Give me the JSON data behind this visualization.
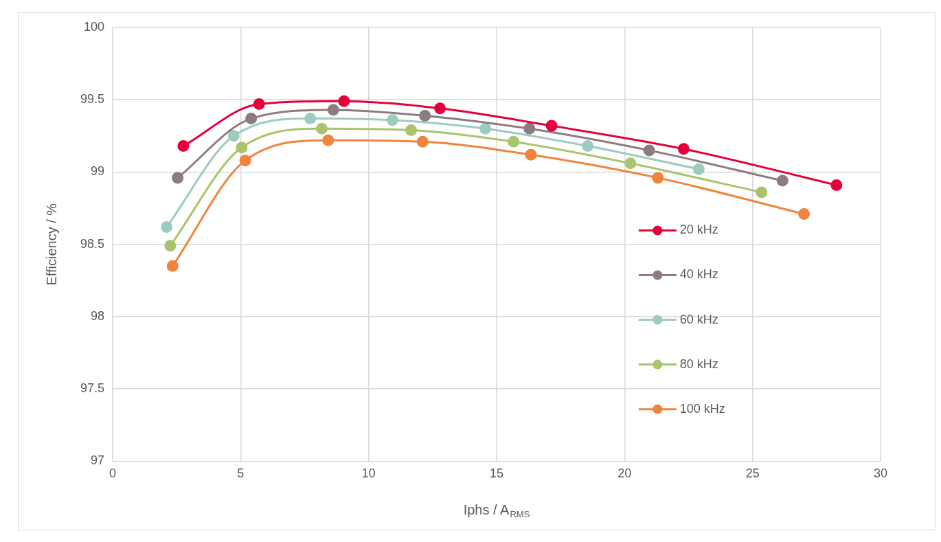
{
  "chart_data": {
    "type": "line",
    "xlabel": "Iphs / A$_{RMS}$",
    "ylabel": "Efficiency / %",
    "xlim": [
      0,
      30
    ],
    "xticks": [
      0,
      5,
      10,
      15,
      20,
      25,
      30
    ],
    "ylim": [
      97,
      100
    ],
    "yticks": [
      97,
      97.5,
      98,
      98.5,
      99,
      99.5,
      100
    ],
    "grid": true,
    "legend": "right",
    "marker": "circle",
    "line_style": "solid",
    "series": [
      {
        "name": "20 kHz",
        "color": "#e4003b",
        "x": [
          2.76,
          5.72,
          9.04,
          12.79,
          17.15,
          22.31,
          28.28
        ],
        "values": [
          99.18,
          99.47,
          99.49,
          99.44,
          99.32,
          99.16,
          98.91
        ]
      },
      {
        "name": "40 kHz",
        "color": "#8c7b80",
        "x": [
          2.54,
          5.41,
          8.62,
          12.2,
          16.28,
          20.96,
          26.17
        ],
        "values": [
          98.96,
          99.37,
          99.43,
          99.39,
          99.3,
          99.15,
          98.94
        ]
      },
      {
        "name": "60 kHz",
        "color": "#9ccbc0",
        "x": [
          2.11,
          4.73,
          7.72,
          10.93,
          14.56,
          18.56,
          22.9
        ],
        "values": [
          98.62,
          99.25,
          99.37,
          99.36,
          99.3,
          99.18,
          99.02
        ]
      },
      {
        "name": "80 kHz",
        "color": "#a9c46a",
        "x": [
          2.25,
          5.04,
          8.17,
          11.66,
          15.66,
          20.23,
          25.35
        ],
        "values": [
          98.49,
          99.17,
          99.3,
          99.29,
          99.21,
          99.06,
          98.86
        ]
      },
      {
        "name": "100 kHz",
        "color": "#f0843c",
        "x": [
          2.34,
          5.18,
          8.42,
          12.11,
          16.34,
          21.3,
          27.01
        ],
        "values": [
          98.35,
          99.08,
          99.22,
          99.21,
          99.12,
          98.96,
          98.71
        ]
      }
    ]
  }
}
